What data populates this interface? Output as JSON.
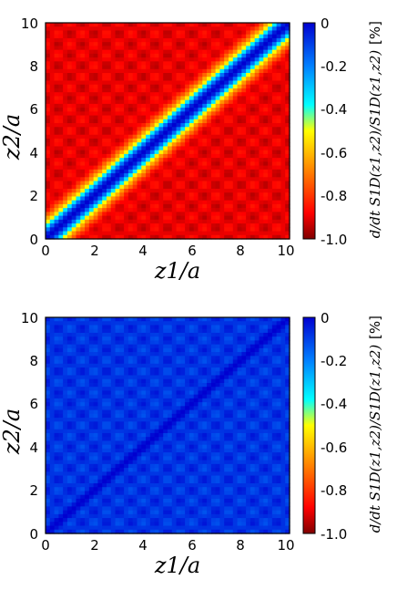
{
  "chart_data": [
    {
      "type": "heatmap",
      "description_variant": "diagonal_well",
      "x": {
        "label": "z1/a",
        "range": [
          0,
          10
        ],
        "ticks": [
          "0",
          "2",
          "4",
          "6",
          "8",
          "10"
        ]
      },
      "y": {
        "label": "z2/a",
        "range": [
          0,
          10
        ],
        "ticks": [
          "0",
          "2",
          "4",
          "6",
          "8",
          "10"
        ]
      },
      "colorbar": {
        "label": "d/dt S1D(z1,z2)/S1D(z1,z2)",
        "unit": "[%]",
        "range": [
          -1.0,
          0
        ],
        "ticks": [
          "0",
          "-0.2",
          "-0.4",
          "-0.6",
          "-0.8",
          "-1.0"
        ]
      },
      "field": {
        "offdiagonal_value": -0.9,
        "diagonal_value": 0,
        "diagonal_width": 0.55
      }
    },
    {
      "type": "heatmap",
      "description_variant": "diagonal_dip",
      "x": {
        "label": "z1/a",
        "range": [
          0,
          10
        ],
        "ticks": [
          "0",
          "2",
          "4",
          "6",
          "8",
          "10"
        ]
      },
      "y": {
        "label": "z2/a",
        "range": [
          0,
          10
        ],
        "ticks": [
          "0",
          "2",
          "4",
          "6",
          "8",
          "10"
        ]
      },
      "colorbar": {
        "label": "d/dt S1D(z1,z2)/S1D(z1,z2)",
        "unit": "[%]",
        "range": [
          -1.0,
          0
        ],
        "ticks": [
          "0",
          "-0.2",
          "-0.4",
          "-0.6",
          "-0.8",
          "-1.0"
        ]
      },
      "field": {
        "offdiagonal_value": -0.08,
        "diagonal_value": 0,
        "diagonal_width": 0.2
      }
    }
  ]
}
